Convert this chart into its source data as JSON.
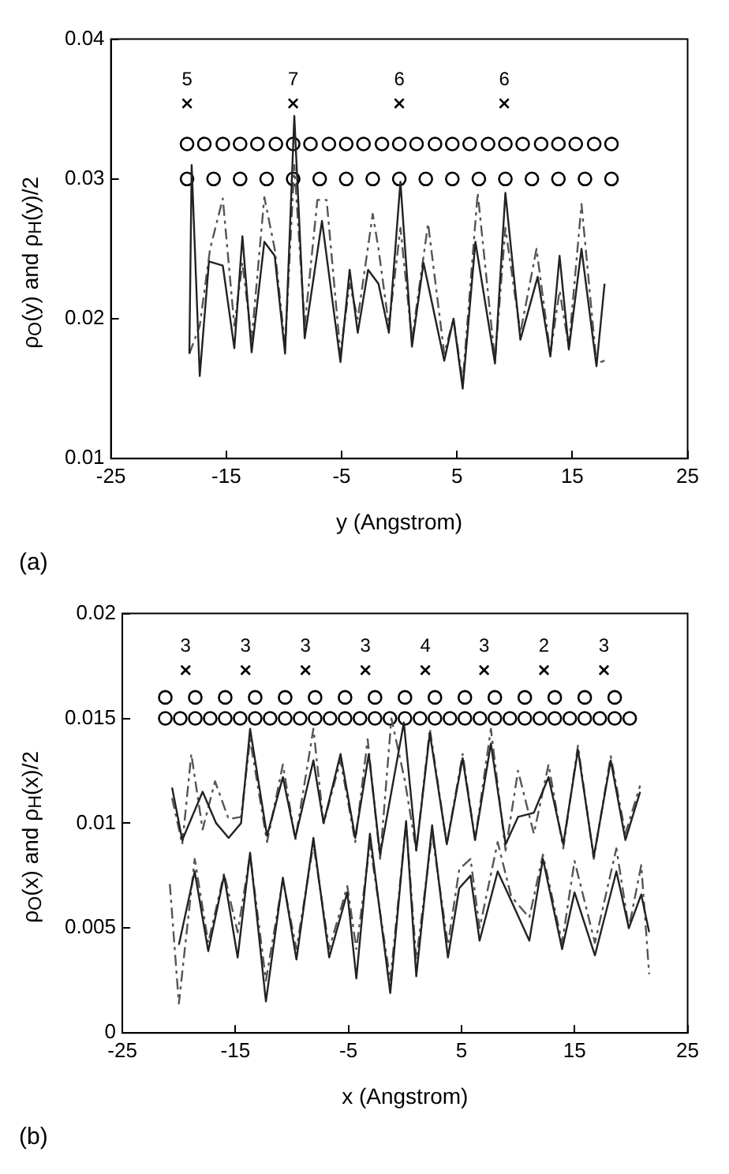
{
  "chart_data": [
    {
      "type": "line",
      "xlabel": "y (Angstrom)",
      "ylabel": "ρ$_{O}$(y) and ρ$_{H}$(y)/2",
      "annotations": [
        "(a)",
        {
          "text": "5",
          "x": -18.4,
          "y": 0.0354
        },
        {
          "text": "7",
          "x": -9.2,
          "y": 0.0354
        },
        {
          "text": "6",
          "x": 0,
          "y": 0.0354
        },
        {
          "text": "6",
          "x": 9.1,
          "y": 0.0354
        }
      ],
      "xlim": [
        -25,
        25
      ],
      "xticks": [
        -25,
        -15,
        -5,
        5,
        15,
        25
      ],
      "ylim": [
        0.01,
        0.04
      ],
      "yticks": [
        0.01,
        0.02,
        0.03,
        0.04
      ],
      "series": [
        {
          "type": "line",
          "color": "#222222",
          "line_style": "solid",
          "x": [
            -18.2,
            -18.0,
            -17.3,
            -16.5,
            -15.3,
            -14.3,
            -13.6,
            -12.8,
            -11.7,
            -10.8,
            -9.9,
            -9.1,
            -8.2,
            -6.7,
            -5.1,
            -4.3,
            -3.6,
            -2.7,
            -1.8,
            -0.9,
            0.1,
            1.1,
            2.1,
            3.9,
            4.7,
            5.5,
            6.6,
            8.3,
            9.2,
            10.5,
            12.0,
            13.1,
            13.9,
            14.7,
            15.8,
            17.1,
            17.8
          ],
          "values": [
            0.0175,
            0.031,
            0.0159,
            0.0241,
            0.0238,
            0.0179,
            0.0259,
            0.0176,
            0.0255,
            0.0245,
            0.0175,
            0.0345,
            0.0186,
            0.027,
            0.0169,
            0.0235,
            0.019,
            0.0235,
            0.0225,
            0.019,
            0.0298,
            0.018,
            0.024,
            0.017,
            0.02,
            0.015,
            0.0255,
            0.0168,
            0.029,
            0.0185,
            0.023,
            0.0173,
            0.0245,
            0.0178,
            0.025,
            0.0166,
            0.0225
          ]
        },
        {
          "type": "line",
          "color": "#555555",
          "line_style": "dashed",
          "x": [
            -18.2,
            -17.3,
            -16.4,
            -15.3,
            -14.3,
            -13.6,
            -12.8,
            -11.7,
            -10.8,
            -9.9,
            -9.1,
            -8.2,
            -7.1,
            -6.3,
            -5.1,
            -4.3,
            -3.6,
            -2.3,
            -1.8,
            -0.9,
            0.1,
            1.1,
            2.5,
            3.9,
            4.7,
            5.5,
            6.8,
            8.3,
            9.2,
            10.5,
            11.9,
            13.1,
            13.9,
            14.7,
            15.8,
            17.1,
            17.8
          ],
          "values": [
            0.0175,
            0.0195,
            0.025,
            0.0286,
            0.0195,
            0.024,
            0.0185,
            0.0287,
            0.025,
            0.018,
            0.031,
            0.0195,
            0.0285,
            0.0285,
            0.0175,
            0.0225,
            0.02,
            0.0275,
            0.025,
            0.0195,
            0.0265,
            0.0185,
            0.0268,
            0.0175,
            0.02,
            0.0155,
            0.029,
            0.017,
            0.0265,
            0.019,
            0.025,
            0.0175,
            0.022,
            0.018,
            0.0282,
            0.0168,
            0.017
          ]
        },
        {
          "type": "scatter",
          "color": "#000000",
          "marker": "cross",
          "x": [
            -18.4,
            -9.2,
            0,
            9.1
          ],
          "values": [
            0.0354,
            0.0354,
            0.0354,
            0.0354
          ]
        },
        {
          "type": "scatter",
          "color": "#000000",
          "marker": "circle",
          "x": [
            -18.4,
            -16.9,
            -15.3,
            -13.8,
            -12.3,
            -10.7,
            -9.2,
            -7.7,
            -6.1,
            -4.6,
            -3.1,
            -1.5,
            0,
            1.5,
            3.1,
            4.6,
            6.1,
            7.7,
            9.2,
            10.7,
            12.3,
            13.8,
            15.3,
            16.9,
            18.4
          ],
          "values": [
            0.0325,
            0.0325,
            0.0325,
            0.0325,
            0.0325,
            0.0325,
            0.0325,
            0.0325,
            0.0325,
            0.0325,
            0.0325,
            0.0325,
            0.0325,
            0.0325,
            0.0325,
            0.0325,
            0.0325,
            0.0325,
            0.0325,
            0.0325,
            0.0325,
            0.0325,
            0.0325,
            0.0325,
            0.0325
          ]
        },
        {
          "type": "scatter",
          "color": "#000000",
          "marker": "circle",
          "x": [
            -18.4,
            -16.1,
            -13.8,
            -11.5,
            -9.2,
            -6.9,
            -4.6,
            -2.3,
            0,
            2.3,
            4.6,
            6.9,
            9.2,
            11.5,
            13.8,
            16.1,
            18.4
          ],
          "values": [
            0.03,
            0.03,
            0.03,
            0.03,
            0.03,
            0.03,
            0.03,
            0.03,
            0.03,
            0.03,
            0.03,
            0.03,
            0.03,
            0.03,
            0.03,
            0.03,
            0.03
          ]
        }
      ]
    },
    {
      "type": "line",
      "xlabel": "x (Angstrom)",
      "ylabel": "ρ$_{O}$(x) and ρ$_{H}$(x)/2",
      "annotations": [
        "(b)",
        {
          "text": "3",
          "x": -19.4,
          "y": 0.0173
        },
        {
          "text": "3",
          "x": -14.1,
          "y": 0.0173
        },
        {
          "text": "3",
          "x": -8.8,
          "y": 0.0173
        },
        {
          "text": "3",
          "x": -3.5,
          "y": 0.0173
        },
        {
          "text": "4",
          "x": 1.8,
          "y": 0.0173
        },
        {
          "text": "3",
          "x": 7.0,
          "y": 0.0173
        },
        {
          "text": "2",
          "x": 12.3,
          "y": 0.0173
        },
        {
          "text": "3",
          "x": 17.6,
          "y": 0.0173
        }
      ],
      "xlim": [
        -25,
        25
      ],
      "xticks": [
        -25,
        -15,
        -5,
        5,
        15,
        25
      ],
      "ylim": [
        0,
        0.02
      ],
      "yticks": [
        0,
        0.005,
        0.01,
        0.015,
        0.02
      ],
      "series": [
        {
          "type": "line",
          "color": "#222222",
          "line_style": "solid",
          "x": [
            -20.6,
            -19.7,
            -17.9,
            -16.7,
            -15.6,
            -14.5,
            -13.7,
            -12.2,
            -10.8,
            -9.7,
            -8.1,
            -7.2,
            -5.7,
            -4.4,
            -3.2,
            -2.2,
            -0.1,
            1.0,
            2.2,
            3.7,
            5.1,
            6.2,
            7.6,
            8.9,
            10.0,
            11.4,
            12.7,
            14.0,
            15.3,
            16.7,
            18.2,
            19.5,
            20.8
          ],
          "values": [
            0.0117,
            0.0092,
            0.0115,
            0.01,
            0.0093,
            0.01,
            0.0145,
            0.0094,
            0.0122,
            0.0093,
            0.013,
            0.01,
            0.0133,
            0.0093,
            0.0133,
            0.0085,
            0.0148,
            0.0087,
            0.0143,
            0.009,
            0.0131,
            0.0092,
            0.0138,
            0.009,
            0.0103,
            0.0105,
            0.0122,
            0.009,
            0.0135,
            0.0084,
            0.013,
            0.0092,
            0.0115
          ]
        },
        {
          "type": "line",
          "color": "#555555",
          "line_style": "dashed",
          "x": [
            -20.6,
            -19.7,
            -18.9,
            -17.9,
            -16.8,
            -15.6,
            -14.5,
            -13.7,
            -12.2,
            -10.8,
            -9.7,
            -8.1,
            -7.2,
            -5.7,
            -4.4,
            -3.3,
            -2.2,
            -1.2,
            0.0,
            1.0,
            2.2,
            3.7,
            5.1,
            6.2,
            7.6,
            8.9,
            10.0,
            11.4,
            12.7,
            14.0,
            15.3,
            16.7,
            18.2,
            19.5,
            20.8
          ],
          "values": [
            0.0112,
            0.009,
            0.0133,
            0.0097,
            0.012,
            0.0102,
            0.0103,
            0.014,
            0.0091,
            0.0128,
            0.0092,
            0.0145,
            0.01,
            0.013,
            0.0091,
            0.014,
            0.0083,
            0.015,
            0.012,
            0.0087,
            0.0145,
            0.009,
            0.0133,
            0.0092,
            0.0145,
            0.0087,
            0.0125,
            0.0095,
            0.0128,
            0.0088,
            0.0137,
            0.0083,
            0.0132,
            0.0095,
            0.0118
          ]
        },
        {
          "type": "line",
          "color": "#222222",
          "line_style": "solid",
          "x": [
            -20.0,
            -18.6,
            -17.4,
            -16.0,
            -14.8,
            -13.7,
            -12.3,
            -10.8,
            -9.6,
            -8.1,
            -6.7,
            -5.1,
            -4.3,
            -3.1,
            -1.3,
            0.1,
            1.0,
            2.4,
            3.8,
            4.8,
            5.8,
            6.6,
            8.2,
            9.4,
            11.0,
            12.2,
            13.9,
            15.0,
            16.8,
            18.7,
            19.8,
            20.9,
            21.6
          ],
          "values": [
            0.0042,
            0.0077,
            0.0039,
            0.0075,
            0.0036,
            0.0086,
            0.0015,
            0.0074,
            0.0035,
            0.0093,
            0.0036,
            0.0067,
            0.0026,
            0.0095,
            0.0019,
            0.0101,
            0.0027,
            0.0099,
            0.0036,
            0.0069,
            0.0075,
            0.0044,
            0.0077,
            0.0063,
            0.0044,
            0.0083,
            0.004,
            0.0067,
            0.0037,
            0.0077,
            0.005,
            0.0066,
            0.0048
          ]
        },
        {
          "type": "line",
          "color": "#555555",
          "line_style": "dashed",
          "x": [
            -20.8,
            -20.0,
            -18.6,
            -17.4,
            -16.0,
            -14.8,
            -13.7,
            -12.3,
            -10.8,
            -9.6,
            -8.1,
            -6.7,
            -5.1,
            -4.3,
            -3.1,
            -1.3,
            0.1,
            1.0,
            2.4,
            3.8,
            4.8,
            5.8,
            6.6,
            8.2,
            9.4,
            11.0,
            12.2,
            13.9,
            15.0,
            16.8,
            18.7,
            19.8,
            20.9,
            21.6
          ],
          "values": [
            0.0071,
            0.0014,
            0.0083,
            0.0043,
            0.0076,
            0.0048,
            0.0085,
            0.0025,
            0.0073,
            0.004,
            0.009,
            0.004,
            0.007,
            0.004,
            0.009,
            0.0025,
            0.01,
            0.0035,
            0.0095,
            0.0042,
            0.0078,
            0.0083,
            0.005,
            0.0091,
            0.0065,
            0.0055,
            0.0085,
            0.0043,
            0.0082,
            0.0043,
            0.0088,
            0.005,
            0.008,
            0.0028
          ]
        },
        {
          "type": "scatter",
          "color": "#000000",
          "marker": "cross",
          "x": [
            -19.4,
            -14.1,
            -8.8,
            -3.5,
            1.8,
            7.0,
            12.3,
            17.6
          ],
          "values": [
            0.0173,
            0.0173,
            0.0173,
            0.0173,
            0.0173,
            0.0173,
            0.0173,
            0.0173
          ]
        },
        {
          "type": "scatter",
          "color": "#000000",
          "marker": "circle",
          "x": [
            -21.2,
            -18.55,
            -15.9,
            -13.25,
            -10.6,
            -7.95,
            -5.3,
            -2.65,
            0,
            2.65,
            5.3,
            7.95,
            10.6,
            13.25,
            15.9,
            18.55
          ],
          "values": [
            0.016,
            0.016,
            0.016,
            0.016,
            0.016,
            0.016,
            0.016,
            0.016,
            0.016,
            0.016,
            0.016,
            0.016,
            0.016,
            0.016,
            0.016,
            0.016
          ]
        },
        {
          "type": "scatter",
          "color": "#000000",
          "marker": "circle",
          "x": [
            -21.2,
            -19.88,
            -18.55,
            -17.23,
            -15.9,
            -14.58,
            -13.25,
            -11.93,
            -10.6,
            -9.28,
            -7.95,
            -6.63,
            -5.3,
            -3.98,
            -2.65,
            -1.33,
            0,
            1.33,
            2.65,
            3.98,
            5.3,
            6.63,
            7.95,
            9.28,
            10.6,
            11.93,
            13.25,
            14.58,
            15.9,
            17.23,
            18.55,
            19.88
          ],
          "values": [
            0.015,
            0.015,
            0.015,
            0.015,
            0.015,
            0.015,
            0.015,
            0.015,
            0.015,
            0.015,
            0.015,
            0.015,
            0.015,
            0.015,
            0.015,
            0.015,
            0.015,
            0.015,
            0.015,
            0.015,
            0.015,
            0.015,
            0.015,
            0.015,
            0.015,
            0.015,
            0.015,
            0.015,
            0.015,
            0.015,
            0.015,
            0.015
          ]
        }
      ]
    }
  ]
}
